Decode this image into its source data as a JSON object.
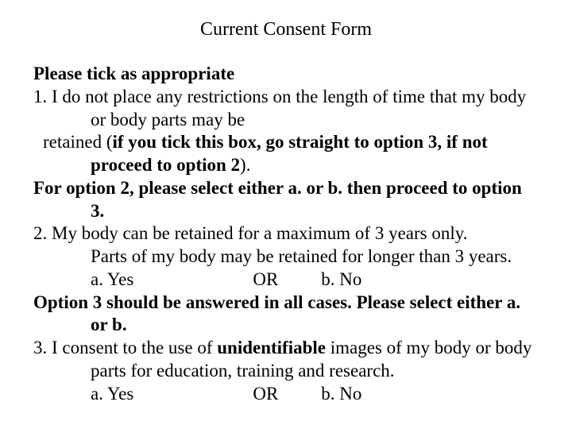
{
  "title": "Current Consent Form",
  "intro": "Please tick as appropriate",
  "item1_line1": "1. I do not place any restrictions on the length of time that my body or body parts may be",
  "item1_cont_a": "retained (",
  "item1_cont_bold": "if you tick this box, go straight to option 3, if not proceed to option 2",
  "item1_cont_close": ").",
  "opt2_instr": "For option 2, please select either a. or b. then proceed to option 3.",
  "item2_line1": "2.  My body can be retained for a maximum of 3 years only.",
  "item2_line2": "Parts of my body may be retained for longer than 3 years.",
  "yes": "a. Yes",
  "or": "OR",
  "no": "b.  No",
  "opt3_instr": "Option 3 should be answered in all cases.  Please select either a. or b.",
  "item3_a": "3. I consent to the use of ",
  "item3_bold": "unidentifiable",
  "item3_b": " images of my body or body parts for education, training and research."
}
